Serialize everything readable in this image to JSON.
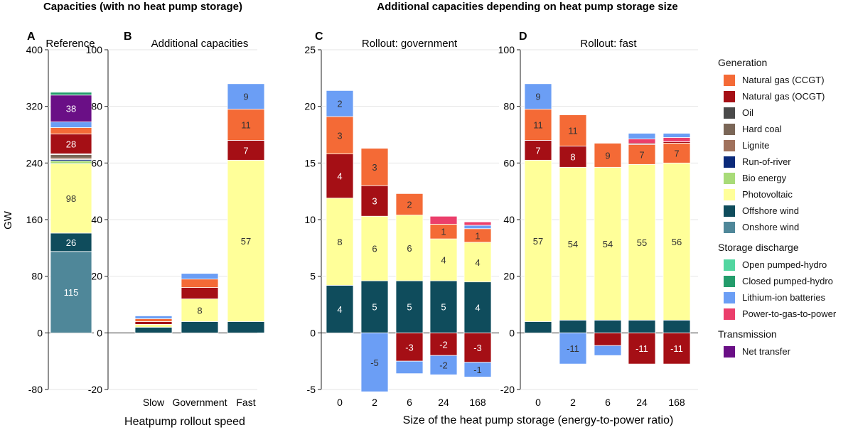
{
  "section_titles": {
    "left": "Capacities (with no heat pump storage)",
    "right": "Additional capacities depending on heat pump storage size"
  },
  "shared_ylabel": "GW",
  "colors": {
    "natural_gas_ccgt": "#f46a36",
    "natural_gas_ocgt": "#a50f15",
    "oil": "#4a4a4a",
    "hard_coal": "#7a6657",
    "lignite": "#a0715c",
    "run_of_river": "#0b2a7a",
    "bio_energy": "#a8db78",
    "photovoltaic": "#ffff99",
    "offshore_wind": "#0f4c5c",
    "onshore_wind": "#4f8799",
    "open_pumped_hydro": "#52d6a0",
    "closed_pumped_hydro": "#239c6b",
    "lithium_ion_batteries": "#6b9ef5",
    "power_to_gas_to_power": "#eb3e6b",
    "net_transfer": "#6a0f86"
  },
  "legend": {
    "groups": [
      {
        "title": "Generation",
        "items": [
          {
            "label": "Natural gas (CCGT)",
            "key": "natural_gas_ccgt"
          },
          {
            "label": "Natural gas (OCGT)",
            "key": "natural_gas_ocgt"
          },
          {
            "label": "Oil",
            "key": "oil"
          },
          {
            "label": "Hard coal",
            "key": "hard_coal"
          },
          {
            "label": "Lignite",
            "key": "lignite"
          },
          {
            "label": "Run-of-river",
            "key": "run_of_river"
          },
          {
            "label": "Bio energy",
            "key": "bio_energy"
          },
          {
            "label": "Photovoltaic",
            "key": "photovoltaic"
          },
          {
            "label": "Offshore wind",
            "key": "offshore_wind"
          },
          {
            "label": "Onshore wind",
            "key": "onshore_wind"
          }
        ]
      },
      {
        "title": "Storage discharge",
        "items": [
          {
            "label": "Open pumped-hydro",
            "key": "open_pumped_hydro"
          },
          {
            "label": "Closed pumped-hydro",
            "key": "closed_pumped_hydro"
          },
          {
            "label": "Lithium-ion batteries",
            "key": "lithium_ion_batteries"
          },
          {
            "label": "Power-to-gas-to-power",
            "key": "power_to_gas_to_power"
          }
        ]
      },
      {
        "title": "Transmission",
        "items": [
          {
            "label": "Net transfer",
            "key": "net_transfer"
          }
        ]
      }
    ]
  },
  "chart_data": [
    {
      "panel": "A",
      "title": "Reference",
      "type": "bar",
      "stacked": true,
      "ylim": [
        -80,
        400
      ],
      "yticks": [
        -80,
        0,
        80,
        160,
        240,
        320,
        400
      ],
      "xlabel": "",
      "categories": [
        ""
      ],
      "stacks": [
        [
          {
            "key": "onshore_wind",
            "value": 115,
            "label": "115"
          },
          {
            "key": "offshore_wind",
            "value": 26,
            "label": "26"
          },
          {
            "key": "photovoltaic",
            "value": 98,
            "label": "98"
          },
          {
            "key": "bio_energy",
            "value": 4
          },
          {
            "key": "run_of_river",
            "value": 2
          },
          {
            "key": "lignite",
            "value": 2
          },
          {
            "key": "hard_coal",
            "value": 5
          },
          {
            "key": "oil",
            "value": 1
          },
          {
            "key": "natural_gas_ocgt",
            "value": 28,
            "label": "28"
          },
          {
            "key": "natural_gas_ccgt",
            "value": 9
          },
          {
            "key": "lithium_ion_batteries",
            "value": 8
          },
          {
            "key": "net_transfer",
            "value": 38,
            "label": "38"
          },
          {
            "key": "closed_pumped_hydro",
            "value": 4
          },
          {
            "key": "open_pumped_hydro",
            "value": 1
          }
        ]
      ]
    },
    {
      "panel": "B",
      "title": "Additional capacities",
      "type": "bar",
      "stacked": true,
      "ylim": [
        -20,
        100
      ],
      "yticks": [
        -20,
        0,
        20,
        40,
        60,
        80,
        100
      ],
      "xlabel": "Heatpump rollout speed",
      "categories": [
        "Slow",
        "Government",
        "Fast"
      ],
      "stacks": [
        [
          {
            "key": "offshore_wind",
            "value": 2
          },
          {
            "key": "photovoltaic",
            "value": 1
          },
          {
            "key": "natural_gas_ocgt",
            "value": 1
          },
          {
            "key": "natural_gas_ccgt",
            "value": 1
          },
          {
            "key": "lithium_ion_batteries",
            "value": 1
          }
        ],
        [
          {
            "key": "offshore_wind",
            "value": 4
          },
          {
            "key": "photovoltaic",
            "value": 8,
            "label": "8"
          },
          {
            "key": "natural_gas_ocgt",
            "value": 4
          },
          {
            "key": "natural_gas_ccgt",
            "value": 3
          },
          {
            "key": "lithium_ion_batteries",
            "value": 2
          }
        ],
        [
          {
            "key": "offshore_wind",
            "value": 4
          },
          {
            "key": "photovoltaic",
            "value": 57,
            "label": "57"
          },
          {
            "key": "natural_gas_ocgt",
            "value": 7,
            "label": "7"
          },
          {
            "key": "natural_gas_ccgt",
            "value": 11,
            "label": "11"
          },
          {
            "key": "lithium_ion_batteries",
            "value": 9,
            "label": "9"
          }
        ]
      ]
    },
    {
      "panel": "C",
      "title": "Rollout: government",
      "type": "bar",
      "stacked": true,
      "ylim": [
        -5,
        25
      ],
      "yticks": [
        -5,
        0,
        5,
        10,
        15,
        20,
        25
      ],
      "xlabel": "Size of the heat pump storage (energy-to-power ratio)",
      "categories": [
        "0",
        "2",
        "6",
        "24",
        "168"
      ],
      "stacks": [
        [
          {
            "key": "offshore_wind",
            "value": 4.2,
            "label": "4"
          },
          {
            "key": "photovoltaic",
            "value": 7.7,
            "label": "8"
          },
          {
            "key": "natural_gas_ocgt",
            "value": 3.9,
            "label": "4"
          },
          {
            "key": "natural_gas_ccgt",
            "value": 3.3,
            "label": "3"
          },
          {
            "key": "lithium_ion_batteries",
            "value": 2.3,
            "label": "2"
          }
        ],
        [
          {
            "key": "offshore_wind",
            "value": 4.6,
            "label": "5"
          },
          {
            "key": "photovoltaic",
            "value": 5.7,
            "label": "6"
          },
          {
            "key": "natural_gas_ocgt",
            "value": 2.7,
            "label": "3"
          },
          {
            "key": "natural_gas_ccgt",
            "value": 3.3,
            "label": "3"
          },
          {
            "key": "lithium_ion_batteries",
            "value": -5.2,
            "label": "-5"
          }
        ],
        [
          {
            "key": "offshore_wind",
            "value": 4.6,
            "label": "5"
          },
          {
            "key": "photovoltaic",
            "value": 5.8,
            "label": "6"
          },
          {
            "key": "natural_gas_ccgt",
            "value": 1.9,
            "label": "2"
          },
          {
            "key": "natural_gas_ocgt",
            "value": -2.5,
            "label": "-3"
          },
          {
            "key": "lithium_ion_batteries",
            "value": -1.1
          }
        ],
        [
          {
            "key": "offshore_wind",
            "value": 4.6,
            "label": "5"
          },
          {
            "key": "photovoltaic",
            "value": 3.7,
            "label": "4"
          },
          {
            "key": "natural_gas_ccgt",
            "value": 1.3,
            "label": "1"
          },
          {
            "key": "power_to_gas_to_power",
            "value": 0.7
          },
          {
            "key": "natural_gas_ocgt",
            "value": -2.0,
            "label": "-2"
          },
          {
            "key": "lithium_ion_batteries",
            "value": -1.7,
            "label": "-2"
          }
        ],
        [
          {
            "key": "offshore_wind",
            "value": 4.5,
            "label": "4"
          },
          {
            "key": "photovoltaic",
            "value": 3.5,
            "label": "4"
          },
          {
            "key": "natural_gas_ccgt",
            "value": 1.2,
            "label": "1"
          },
          {
            "key": "lithium_ion_batteries",
            "value": 0.3
          },
          {
            "key": "power_to_gas_to_power",
            "value": 0.3
          },
          {
            "key": "natural_gas_ocgt",
            "value": -2.6,
            "label": "-3"
          },
          {
            "key": "lithium_ion_batteries",
            "value": -1.3,
            "label": "-1"
          }
        ]
      ]
    },
    {
      "panel": "D",
      "title": "Rollout: fast",
      "type": "bar",
      "stacked": true,
      "ylim": [
        -20,
        100
      ],
      "yticks": [
        -20,
        0,
        20,
        40,
        60,
        80,
        100
      ],
      "xlabel": "",
      "categories": [
        "0",
        "2",
        "6",
        "24",
        "168"
      ],
      "stacks": [
        [
          {
            "key": "offshore_wind",
            "value": 4
          },
          {
            "key": "photovoltaic",
            "value": 57,
            "label": "57"
          },
          {
            "key": "natural_gas_ocgt",
            "value": 7,
            "label": "7"
          },
          {
            "key": "natural_gas_ccgt",
            "value": 11,
            "label": "11"
          },
          {
            "key": "lithium_ion_batteries",
            "value": 9,
            "label": "9"
          }
        ],
        [
          {
            "key": "offshore_wind",
            "value": 4.5
          },
          {
            "key": "photovoltaic",
            "value": 54,
            "label": "54"
          },
          {
            "key": "natural_gas_ocgt",
            "value": 7.5,
            "label": "8"
          },
          {
            "key": "natural_gas_ccgt",
            "value": 11,
            "label": "11"
          },
          {
            "key": "lithium_ion_batteries",
            "value": -11,
            "label": "-11"
          }
        ],
        [
          {
            "key": "offshore_wind",
            "value": 4.5
          },
          {
            "key": "photovoltaic",
            "value": 54,
            "label": "54"
          },
          {
            "key": "natural_gas_ccgt",
            "value": 8.5,
            "label": "9"
          },
          {
            "key": "natural_gas_ocgt",
            "value": -4.5
          },
          {
            "key": "lithium_ion_batteries",
            "value": -3.5
          }
        ],
        [
          {
            "key": "offshore_wind",
            "value": 4.5
          },
          {
            "key": "photovoltaic",
            "value": 55,
            "label": "55"
          },
          {
            "key": "natural_gas_ccgt",
            "value": 7,
            "label": "7"
          },
          {
            "key": "natural_gas_ocgt",
            "value": 0.5
          },
          {
            "key": "power_to_gas_to_power",
            "value": 1.5
          },
          {
            "key": "lithium_ion_batteries",
            "value": 2
          },
          {
            "key": "natural_gas_ocgt",
            "value": -11,
            "label": "-11"
          }
        ],
        [
          {
            "key": "offshore_wind",
            "value": 4.5
          },
          {
            "key": "photovoltaic",
            "value": 55.5,
            "label": "56"
          },
          {
            "key": "natural_gas_ccgt",
            "value": 7,
            "label": "7"
          },
          {
            "key": "natural_gas_ocgt",
            "value": 0.5
          },
          {
            "key": "power_to_gas_to_power",
            "value": 1.5
          },
          {
            "key": "lithium_ion_batteries",
            "value": 1.5
          },
          {
            "key": "natural_gas_ocgt",
            "value": -11,
            "label": "-11"
          }
        ]
      ]
    }
  ]
}
